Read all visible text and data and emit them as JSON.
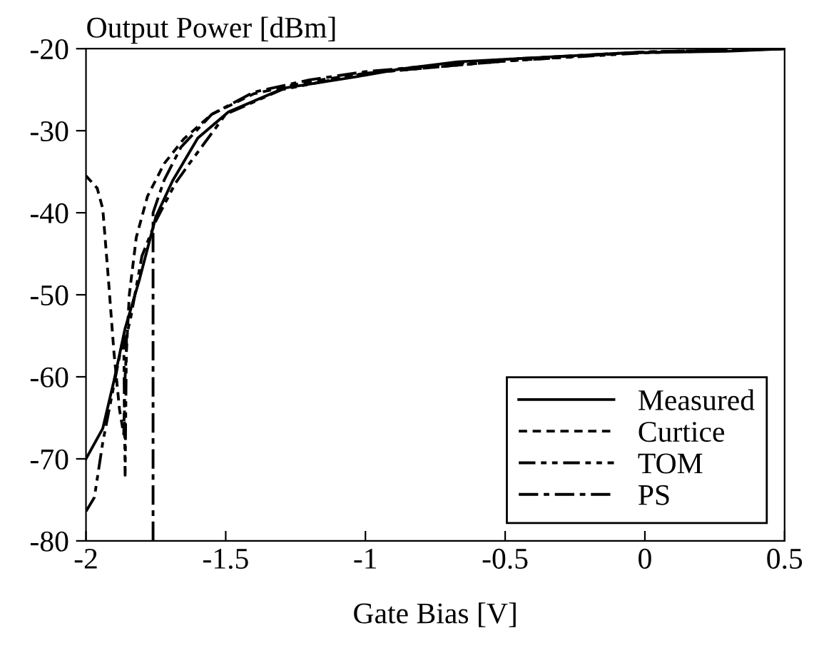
{
  "chart_data": {
    "type": "line",
    "ylabel": "Output Power [dBm]",
    "xlabel": "Gate Bias [V]",
    "xlim": [
      -2,
      0.5
    ],
    "xticks": [
      -2,
      -1.5,
      -1,
      -0.5,
      0,
      0.5
    ],
    "ylim": [
      -80,
      -20
    ],
    "yticks": [
      -80,
      -70,
      -60,
      -50,
      -40,
      -30,
      -20
    ],
    "grid": false,
    "legend": "bottom right",
    "marker": "none",
    "series": [
      {
        "name": "Measured",
        "color": "#000000",
        "line_style": "solid",
        "x": [
          -2,
          -1.94,
          -1.9,
          -1.86,
          -1.81,
          -1.75,
          -1.69,
          -1.6,
          -1.49,
          -1.29,
          -1.03,
          -0.88,
          -0.67,
          -0.28,
          -0.06,
          0.31,
          0.5
        ],
        "values": [
          -70,
          -66.3,
          -60.5,
          -54.1,
          -48.3,
          -40.5,
          -36.1,
          -30.9,
          -27.7,
          -24.8,
          -23.4,
          -22.5,
          -21.6,
          -20.9,
          -20.5,
          -20.3,
          -20
        ]
      },
      {
        "name": "Curtice",
        "color": "#000000",
        "line_style": "dotted",
        "x": [
          -2,
          -1.96,
          -1.94,
          -1.92,
          -1.9,
          -1.88,
          -1.865,
          -1.86,
          -1.845,
          -1.82,
          -1.78,
          -1.72,
          -1.65,
          -1.55,
          -1.4,
          -1.2,
          -1,
          -0.5,
          0,
          0.5
        ],
        "values": [
          -35.5,
          -37,
          -39.5,
          -48,
          -57,
          -64,
          -67,
          -60,
          -50,
          -43,
          -38,
          -34,
          -31,
          -28,
          -25.5,
          -24,
          -23,
          -21.5,
          -20.4,
          -20
        ]
      },
      {
        "name": "TOM",
        "color": "#000000",
        "line_style": "dashdot",
        "x": [
          -2,
          -1.97,
          -1.94,
          -1.88,
          -1.865,
          -1.86,
          -1.855,
          -1.84,
          -1.8,
          -1.75,
          -1.68,
          -1.63,
          -1.5,
          -1.3,
          -1,
          -0.5,
          0,
          0.5
        ],
        "values": [
          -76.4,
          -74.7,
          -68,
          -57.5,
          -55,
          -72,
          -55,
          -52.8,
          -45.3,
          -41,
          -36.4,
          -34,
          -28,
          -25,
          -23,
          -21.5,
          -20.5,
          -20
        ]
      },
      {
        "name": "PS",
        "color": "#000000",
        "line_style": "dashed",
        "x": [
          -1.76,
          -1.76,
          -1.72,
          -1.66,
          -1.55,
          -1.4,
          -1.2,
          -1,
          -0.5,
          0,
          0.5
        ],
        "values": [
          -80,
          -40,
          -36,
          -32,
          -28,
          -25.3,
          -23.8,
          -22.8,
          -21.3,
          -20.4,
          -20
        ]
      }
    ]
  }
}
